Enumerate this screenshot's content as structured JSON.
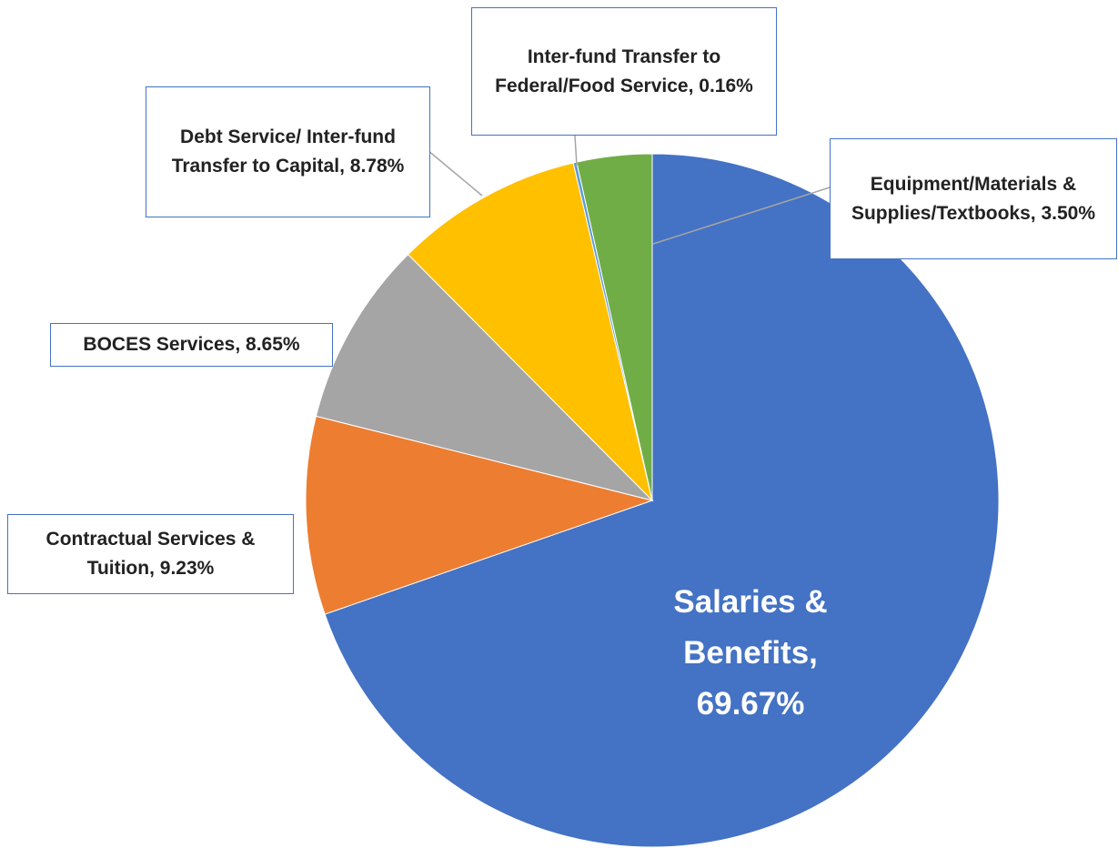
{
  "chart_data": {
    "type": "pie",
    "categories": [
      "Salaries & Benefits",
      "Contractual Services & Tuition",
      "BOCES Services",
      "Debt Service/ Inter-fund Transfer to Capital",
      "Inter-fund Transfer to Federal/Food Service",
      "Equipment/Materials & Supplies/Textbooks"
    ],
    "values": [
      69.67,
      9.23,
      8.65,
      8.78,
      0.16,
      3.5
    ],
    "value_labels": [
      "69.67%",
      "9.23%",
      "8.65%",
      "8.78%",
      "0.16%",
      "3.50%"
    ],
    "colors": [
      "#4472c4",
      "#ed7d31",
      "#a5a5a5",
      "#ffc000",
      "#5b9bd5",
      "#70ad47"
    ]
  }
}
